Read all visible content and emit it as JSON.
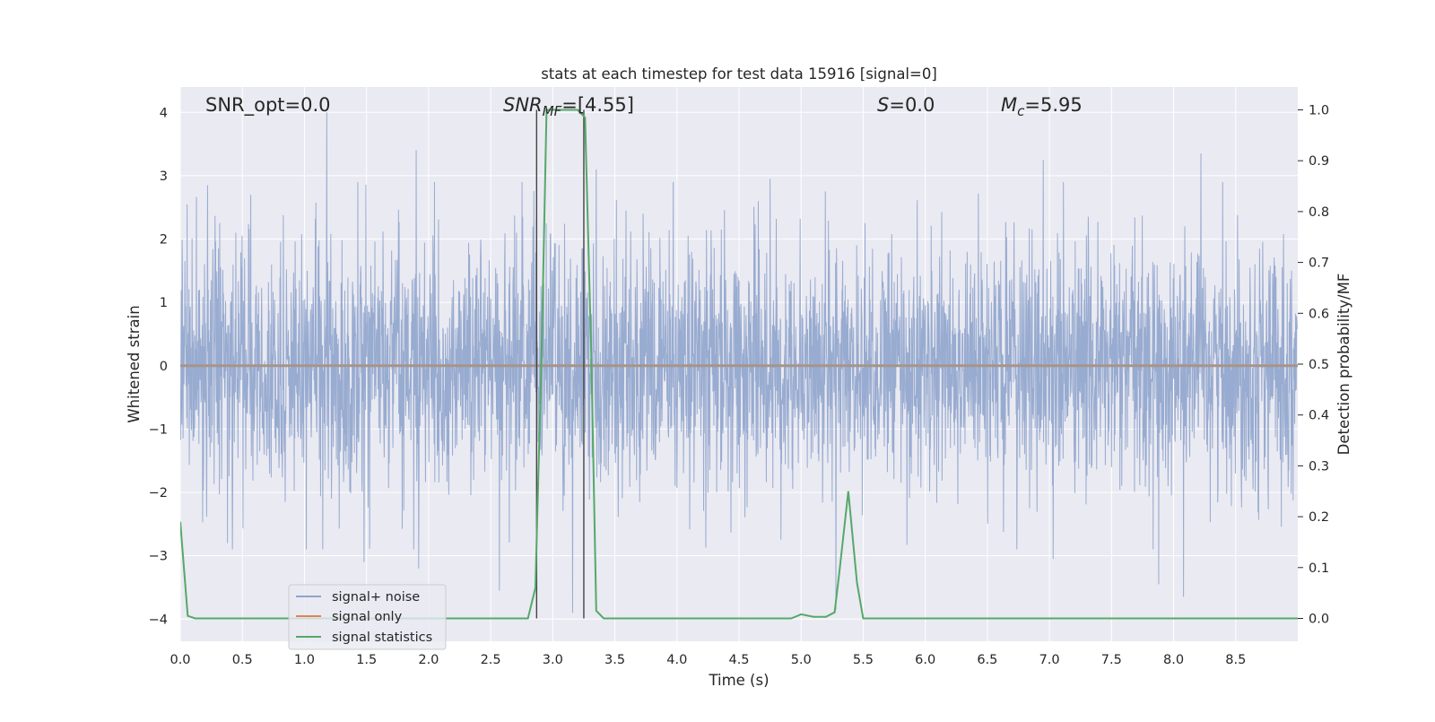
{
  "chart_data": {
    "type": "line",
    "title": "stats at each timestep for test data 15916 [signal=0]",
    "xlabel": "Time (s)",
    "ylabel_left": "Whitened strain",
    "ylabel_right": "Detection probability/MF",
    "xlim": [
      0.0,
      9.0
    ],
    "ylim_left": [
      -4.35,
      4.4
    ],
    "ylim_right": [
      -0.045,
      1.045
    ],
    "x_ticks": [
      "0.0",
      "0.5",
      "1.0",
      "1.5",
      "2.0",
      "2.5",
      "3.0",
      "3.5",
      "4.0",
      "4.5",
      "5.0",
      "5.5",
      "6.0",
      "6.5",
      "7.0",
      "7.5",
      "8.0",
      "8.5"
    ],
    "x_tick_values": [
      0.0,
      0.5,
      1.0,
      1.5,
      2.0,
      2.5,
      3.0,
      3.5,
      4.0,
      4.5,
      5.0,
      5.5,
      6.0,
      6.5,
      7.0,
      7.5,
      8.0,
      8.5
    ],
    "y_left_ticks": [
      "−4",
      "−3",
      "−2",
      "−1",
      "0",
      "1",
      "2",
      "3",
      "4"
    ],
    "y_left_tick_values": [
      -4,
      -3,
      -2,
      -1,
      0,
      1,
      2,
      3,
      4
    ],
    "y_right_ticks": [
      "0.0",
      "0.1",
      "0.2",
      "0.3",
      "0.4",
      "0.5",
      "0.6",
      "0.7",
      "0.8",
      "0.9",
      "1.0"
    ],
    "y_right_tick_values": [
      0.0,
      0.1,
      0.2,
      0.3,
      0.4,
      0.5,
      0.6,
      0.7,
      0.8,
      0.9,
      1.0
    ],
    "grid": true,
    "legend_position": "lower-left",
    "annotations": {
      "snr_opt": "SNR_opt=0.0",
      "snr_mf_var": "SNR",
      "snr_mf_sub": "MF",
      "snr_mf_val": "=[4.55]",
      "s_var": "S",
      "s_val": "=0.0",
      "mc_var": "M",
      "mc_sub": "c",
      "mc_val": "=5.95"
    },
    "vertical_markers": [
      2.87,
      3.25
    ],
    "series": [
      {
        "name": "signal+ noise",
        "color": "#8fa4cc",
        "axis": "left",
        "sample_interval": 0.0025,
        "envelope_std": 0.95,
        "peaks": [
          [
            0.22,
            2.85
          ],
          [
            1.18,
            4.0
          ],
          [
            1.9,
            3.4
          ],
          [
            3.35,
            3.1
          ],
          [
            4.75,
            2.95
          ],
          [
            6.95,
            3.25
          ],
          [
            8.22,
            3.35
          ],
          [
            0.38,
            -2.8
          ],
          [
            1.48,
            -3.1
          ],
          [
            1.92,
            -3.2
          ],
          [
            2.57,
            -3.55
          ],
          [
            3.16,
            -3.9
          ],
          [
            7.03,
            -3.05
          ],
          [
            7.88,
            -3.45
          ],
          [
            8.08,
            -3.65
          ],
          [
            5.28,
            -3.85
          ]
        ]
      },
      {
        "name": "signal only",
        "color": "#dd8452",
        "axis": "left",
        "x": [
          0.0,
          9.0
        ],
        "y": [
          0.0,
          0.0
        ]
      },
      {
        "name": "signal statistics",
        "color": "#55a868",
        "axis": "right",
        "x": [
          0.0,
          0.06,
          0.12,
          0.5,
          1.0,
          1.5,
          2.0,
          2.5,
          2.8,
          2.86,
          2.91,
          2.95,
          3.0,
          3.1,
          3.2,
          3.26,
          3.31,
          3.35,
          3.41,
          3.5,
          4.0,
          4.5,
          4.92,
          5.0,
          5.1,
          5.2,
          5.27,
          5.31,
          5.38,
          5.45,
          5.5,
          5.55,
          6.0,
          7.0,
          8.0,
          9.0
        ],
        "y": [
          0.19,
          0.005,
          0.0,
          0.0,
          0.0,
          0.0,
          0.0,
          0.0,
          0.0,
          0.06,
          0.52,
          1.0,
          1.0,
          1.0,
          1.0,
          0.985,
          0.52,
          0.015,
          0.0,
          0.0,
          0.0,
          0.0,
          0.0,
          0.008,
          0.003,
          0.003,
          0.012,
          0.095,
          0.25,
          0.07,
          0.0,
          0.0,
          0.0,
          0.0,
          0.0,
          0.0
        ]
      }
    ]
  }
}
